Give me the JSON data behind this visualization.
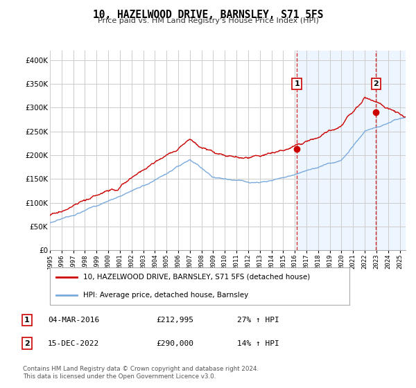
{
  "title": "10, HAZELWOOD DRIVE, BARNSLEY, S71 5FS",
  "subtitle": "Price paid vs. HM Land Registry's House Price Index (HPI)",
  "legend_line1": "10, HAZELWOOD DRIVE, BARNSLEY, S71 5FS (detached house)",
  "legend_line2": "HPI: Average price, detached house, Barnsley",
  "transaction1_label": "1",
  "transaction1_date": "04-MAR-2016",
  "transaction1_price": "£212,995",
  "transaction1_hpi": "27% ↑ HPI",
  "transaction1_x": 2016.17,
  "transaction1_y": 212995,
  "transaction2_label": "2",
  "transaction2_date": "15-DEC-2022",
  "transaction2_price": "£290,000",
  "transaction2_hpi": "14% ↑ HPI",
  "transaction2_x": 2022.96,
  "transaction2_y": 290000,
  "red_line_color": "#cc0000",
  "blue_line_color": "#7aaadd",
  "vline_color": "#cc0000",
  "grid_color": "#cccccc",
  "bg_color": "#ffffff",
  "shade_color": "#ddeeff",
  "ylim": [
    0,
    420000
  ],
  "xlim_start": 1995,
  "xlim_end": 2025.5,
  "shade_start": 2016.17,
  "footer": "Contains HM Land Registry data © Crown copyright and database right 2024.\nThis data is licensed under the Open Government Licence v3.0."
}
